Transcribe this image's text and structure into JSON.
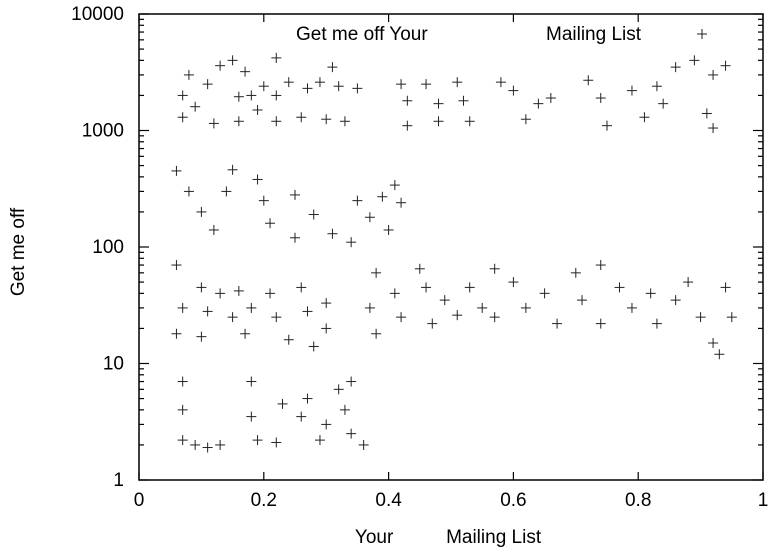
{
  "chart_data": {
    "type": "scatter",
    "title": "",
    "xlabel": "Your          Mailing List",
    "ylabel": "Get me off",
    "x_scale": "linear",
    "y_scale": "log",
    "xlim": [
      0,
      1
    ],
    "ylim": [
      1,
      10000
    ],
    "x_ticks": [
      0,
      0.2,
      0.4,
      0.6,
      0.8,
      1
    ],
    "x_tick_labels": [
      "0",
      "0.2",
      "0.4",
      "0.6",
      "0.8",
      "1"
    ],
    "y_ticks": [
      1,
      10,
      100,
      1000,
      10000
    ],
    "y_tick_labels": [
      "1",
      "10",
      "100",
      "1000",
      "10000"
    ],
    "grid": false,
    "legend_position": "top",
    "legend": {
      "text_left": "Get me off Your",
      "text_right": "Mailing List",
      "marker": "+"
    },
    "marker": "+",
    "marker_color": "#222222",
    "series": [
      {
        "name": "Get me off Your Mailing List",
        "points": [
          [
            0.07,
            2000
          ],
          [
            0.08,
            3000
          ],
          [
            0.07,
            1300
          ],
          [
            0.09,
            1600
          ],
          [
            0.11,
            2500
          ],
          [
            0.13,
            3600
          ],
          [
            0.15,
            4000
          ],
          [
            0.17,
            3200
          ],
          [
            0.12,
            1150
          ],
          [
            0.16,
            1200
          ],
          [
            0.19,
            1500
          ],
          [
            0.18,
            2000
          ],
          [
            0.16,
            1950
          ],
          [
            0.2,
            2400
          ],
          [
            0.22,
            4200
          ],
          [
            0.22,
            2000
          ],
          [
            0.22,
            1200
          ],
          [
            0.24,
            2600
          ],
          [
            0.27,
            2300
          ],
          [
            0.29,
            2600
          ],
          [
            0.26,
            1300
          ],
          [
            0.3,
            1250
          ],
          [
            0.31,
            3500
          ],
          [
            0.32,
            2400
          ],
          [
            0.33,
            1200
          ],
          [
            0.35,
            2300
          ],
          [
            0.42,
            2500
          ],
          [
            0.43,
            1800
          ],
          [
            0.43,
            1100
          ],
          [
            0.46,
            2500
          ],
          [
            0.48,
            1700
          ],
          [
            0.48,
            1200
          ],
          [
            0.51,
            2600
          ],
          [
            0.52,
            1800
          ],
          [
            0.53,
            1200
          ],
          [
            0.58,
            2600
          ],
          [
            0.6,
            2200
          ],
          [
            0.64,
            1700
          ],
          [
            0.62,
            1250
          ],
          [
            0.66,
            1900
          ],
          [
            0.72,
            2700
          ],
          [
            0.74,
            1900
          ],
          [
            0.75,
            1100
          ],
          [
            0.79,
            2200
          ],
          [
            0.81,
            1300
          ],
          [
            0.83,
            2400
          ],
          [
            0.86,
            3500
          ],
          [
            0.84,
            1700
          ],
          [
            0.89,
            4000
          ],
          [
            0.92,
            3000
          ],
          [
            0.91,
            1400
          ],
          [
            0.94,
            3600
          ],
          [
            0.92,
            1050
          ],
          [
            0.06,
            450
          ],
          [
            0.08,
            300
          ],
          [
            0.1,
            200
          ],
          [
            0.12,
            140
          ],
          [
            0.14,
            300
          ],
          [
            0.15,
            460
          ],
          [
            0.19,
            380
          ],
          [
            0.2,
            250
          ],
          [
            0.21,
            160
          ],
          [
            0.25,
            280
          ],
          [
            0.25,
            120
          ],
          [
            0.28,
            190
          ],
          [
            0.31,
            130
          ],
          [
            0.34,
            110
          ],
          [
            0.35,
            250
          ],
          [
            0.37,
            180
          ],
          [
            0.39,
            270
          ],
          [
            0.4,
            140
          ],
          [
            0.41,
            340
          ],
          [
            0.42,
            240
          ],
          [
            0.06,
            70
          ],
          [
            0.07,
            30
          ],
          [
            0.06,
            18
          ],
          [
            0.1,
            45
          ],
          [
            0.11,
            28
          ],
          [
            0.1,
            17
          ],
          [
            0.13,
            40
          ],
          [
            0.15,
            25
          ],
          [
            0.16,
            42
          ],
          [
            0.18,
            30
          ],
          [
            0.17,
            18
          ],
          [
            0.21,
            40
          ],
          [
            0.22,
            25
          ],
          [
            0.24,
            16
          ],
          [
            0.26,
            45
          ],
          [
            0.27,
            28
          ],
          [
            0.28,
            14
          ],
          [
            0.3,
            33
          ],
          [
            0.3,
            20
          ],
          [
            0.38,
            60
          ],
          [
            0.37,
            30
          ],
          [
            0.38,
            18
          ],
          [
            0.41,
            40
          ],
          [
            0.42,
            25
          ],
          [
            0.45,
            65
          ],
          [
            0.46,
            45
          ],
          [
            0.47,
            22
          ],
          [
            0.49,
            35
          ],
          [
            0.51,
            26
          ],
          [
            0.53,
            45
          ],
          [
            0.55,
            30
          ],
          [
            0.57,
            65
          ],
          [
            0.57,
            25
          ],
          [
            0.6,
            50
          ],
          [
            0.62,
            30
          ],
          [
            0.65,
            40
          ],
          [
            0.67,
            22
          ],
          [
            0.7,
            60
          ],
          [
            0.71,
            35
          ],
          [
            0.74,
            70
          ],
          [
            0.74,
            22
          ],
          [
            0.77,
            45
          ],
          [
            0.79,
            30
          ],
          [
            0.82,
            40
          ],
          [
            0.83,
            22
          ],
          [
            0.86,
            35
          ],
          [
            0.88,
            50
          ],
          [
            0.9,
            25
          ],
          [
            0.92,
            15
          ],
          [
            0.94,
            45
          ],
          [
            0.95,
            25
          ],
          [
            0.93,
            12
          ],
          [
            0.07,
            7
          ],
          [
            0.07,
            4
          ],
          [
            0.07,
            2.2
          ],
          [
            0.09,
            2
          ],
          [
            0.11,
            1.9
          ],
          [
            0.13,
            2
          ],
          [
            0.18,
            7
          ],
          [
            0.18,
            3.5
          ],
          [
            0.19,
            2.2
          ],
          [
            0.23,
            4.5
          ],
          [
            0.22,
            2.1
          ],
          [
            0.26,
            3.5
          ],
          [
            0.27,
            5
          ],
          [
            0.29,
            2.2
          ],
          [
            0.3,
            3
          ],
          [
            0.32,
            6
          ],
          [
            0.33,
            4
          ],
          [
            0.34,
            2.5
          ],
          [
            0.36,
            2
          ],
          [
            0.34,
            7
          ]
        ]
      }
    ]
  }
}
